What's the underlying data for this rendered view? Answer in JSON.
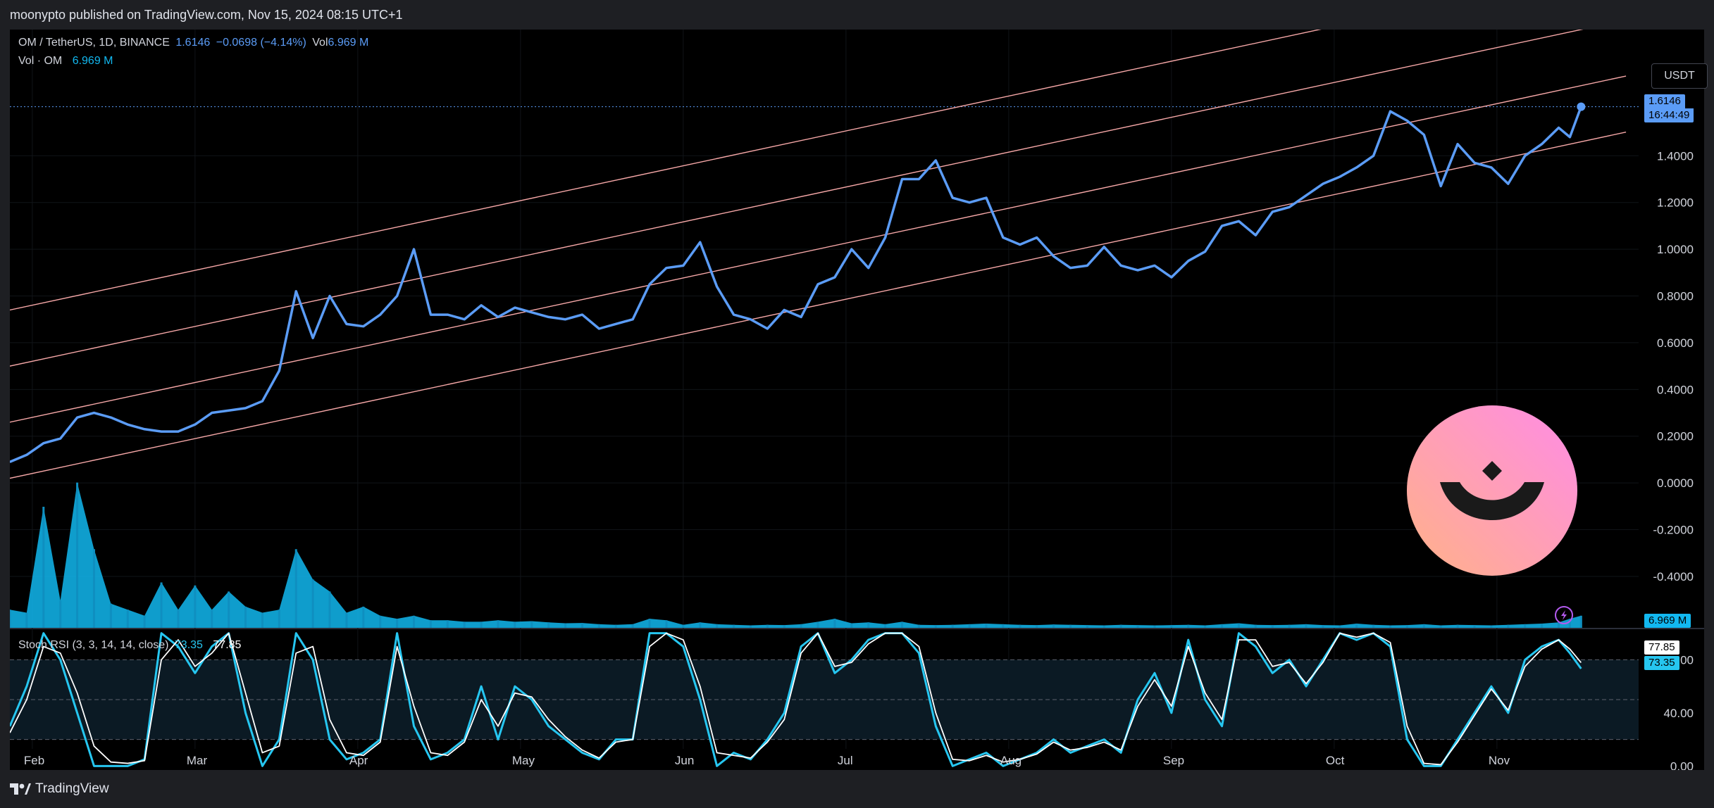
{
  "header": {
    "published": "moonypto published on TradingView.com, Nov 15, 2024 08:15 UTC+1"
  },
  "footer": {
    "brand": "TradingView"
  },
  "currency_button": "USDT",
  "legend": {
    "symbol": "OM / TetherUS, 1D, BINANCE",
    "price": "1.6146",
    "change": "−0.0698 (−4.14%)",
    "vol_label": "Vol",
    "vol_value": "6.969 M",
    "vol_line_label": "Vol · OM",
    "vol_line_value": "6.969 M",
    "stoch_label": "Stoch RSI (3, 3, 14, 14, close)",
    "stoch_k": "73.35",
    "stoch_d": "77.85"
  },
  "tags": {
    "last_price": "1.6146",
    "countdown": "16:44:49",
    "volume": "6.969 M",
    "stoch_d": "77.85",
    "stoch_k": "73.35"
  },
  "colors": {
    "price_line": "#5b9cf6",
    "channel": "#f7a8a8",
    "volume": "#12b8f0",
    "stoch_k": "#26c6f0",
    "stoch_d": "#ffffff",
    "logo_gradient_start": "#ffb287",
    "logo_gradient_end": "#ff8be6"
  },
  "chart_data": [
    {
      "type": "line",
      "title": "OM / TetherUS, 1D, BINANCE",
      "x_ticks": [
        "Feb",
        "Mar",
        "Apr",
        "May",
        "Jun",
        "Jul",
        "Aug",
        "Sep",
        "Oct",
        "Nov"
      ],
      "y_ticks": [
        "1.4000",
        "1.2000",
        "1.0000",
        "0.8000",
        "0.6000",
        "0.4000",
        "0.2000",
        "0.0000",
        "-0.2000",
        "-0.4000"
      ],
      "ylim": [
        -0.62,
        1.94
      ],
      "xlim": [
        0,
        29
      ],
      "grid": true,
      "series": [
        {
          "x": [
            0,
            0.3,
            0.6,
            0.9,
            1.2,
            1.5,
            1.8,
            2.1,
            2.4,
            2.7,
            3.0,
            3.3,
            3.6,
            3.9,
            4.2,
            4.5,
            4.8,
            5.1,
            5.4,
            5.7,
            6.0,
            6.3,
            6.6,
            6.9,
            7.2,
            7.5,
            7.8,
            8.1,
            8.4,
            8.7,
            9.0,
            9.3,
            9.6,
            9.9,
            10.2,
            10.5,
            10.8,
            11.1,
            11.4,
            11.7,
            12.0,
            12.3,
            12.6,
            12.9,
            13.2,
            13.5,
            13.8,
            14.1,
            14.4,
            14.7,
            15.0,
            15.3,
            15.6,
            15.9,
            16.2,
            16.5,
            16.8,
            17.1,
            17.4,
            17.7,
            18.0,
            18.3,
            18.6,
            18.9,
            19.2,
            19.5,
            19.8,
            20.1,
            20.4,
            20.7,
            21.0,
            21.3,
            21.6,
            21.9,
            22.2,
            22.5,
            22.8,
            23.1,
            23.4,
            23.7,
            24.0,
            24.3,
            24.6,
            24.9,
            25.2,
            25.5,
            25.8,
            26.1,
            26.4,
            26.7,
            27.0,
            27.3,
            27.6,
            27.8,
            28.0
          ],
          "y": [
            0.09,
            0.12,
            0.17,
            0.19,
            0.28,
            0.3,
            0.28,
            0.25,
            0.23,
            0.22,
            0.22,
            0.25,
            0.3,
            0.31,
            0.32,
            0.35,
            0.48,
            0.82,
            0.62,
            0.8,
            0.68,
            0.67,
            0.72,
            0.8,
            1.0,
            0.72,
            0.72,
            0.7,
            0.76,
            0.71,
            0.75,
            0.73,
            0.71,
            0.7,
            0.72,
            0.66,
            0.68,
            0.7,
            0.85,
            0.92,
            0.93,
            1.03,
            0.84,
            0.72,
            0.7,
            0.66,
            0.74,
            0.71,
            0.85,
            0.88,
            1.0,
            0.92,
            1.05,
            1.3,
            1.3,
            1.38,
            1.22,
            1.2,
            1.22,
            1.05,
            1.02,
            1.05,
            0.97,
            0.92,
            0.93,
            1.01,
            0.93,
            0.91,
            0.93,
            0.88,
            0.95,
            0.99,
            1.1,
            1.12,
            1.06,
            1.16,
            1.18,
            1.23,
            1.28,
            1.31,
            1.35,
            1.4,
            1.59,
            1.55,
            1.49,
            1.27,
            1.45,
            1.37,
            1.35,
            1.28,
            1.4,
            1.45,
            1.52,
            1.48,
            1.61
          ]
        }
      ],
      "annotations": [
        "Parallel channel (4 lines)"
      ]
    },
    {
      "type": "bar",
      "title": "Vol · OM",
      "series": [
        {
          "name": "Volume (M)",
          "x": [
            0,
            0.3,
            0.6,
            0.9,
            1.2,
            1.5,
            1.8,
            2.1,
            2.4,
            2.7,
            3.0,
            3.3,
            3.6,
            3.9,
            4.2,
            4.5,
            4.8,
            5.1,
            5.4,
            5.7,
            6.0,
            6.3,
            6.6,
            6.9,
            7.2,
            7.5,
            7.8,
            8.1,
            8.4,
            8.7,
            9.0,
            9.3,
            9.6,
            9.9,
            10.2,
            10.5,
            10.8,
            11.1,
            11.4,
            11.7,
            12.0,
            12.3,
            12.6,
            12.9,
            13.2,
            13.5,
            13.8,
            14.1,
            14.4,
            14.7,
            15.0,
            15.3,
            15.6,
            15.9,
            16.2,
            16.5,
            16.8,
            17.1,
            17.4,
            17.7,
            18.0,
            18.3,
            18.6,
            18.9,
            19.2,
            19.5,
            19.8,
            20.1,
            20.4,
            20.7,
            21.0,
            21.3,
            21.6,
            21.9,
            22.2,
            22.5,
            22.8,
            23.1,
            23.4,
            23.7,
            24.0,
            24.3,
            24.6,
            24.9,
            25.2,
            25.5,
            25.8,
            26.1,
            26.4,
            26.7,
            27.0,
            27.3,
            27.6,
            27.8,
            28.0
          ],
          "values": [
            60,
            50,
            400,
            90,
            480,
            260,
            80,
            60,
            40,
            150,
            60,
            140,
            60,
            120,
            70,
            50,
            60,
            260,
            160,
            120,
            50,
            70,
            40,
            30,
            40,
            25,
            25,
            20,
            20,
            25,
            20,
            22,
            18,
            15,
            16,
            12,
            10,
            12,
            30,
            25,
            10,
            18,
            12,
            10,
            8,
            10,
            9,
            12,
            20,
            30,
            15,
            18,
            12,
            20,
            10,
            9,
            10,
            12,
            14,
            12,
            10,
            9,
            11,
            10,
            9,
            8,
            10,
            9,
            8,
            9,
            10,
            8,
            12,
            15,
            10,
            9,
            10,
            12,
            9,
            8,
            14,
            10,
            8,
            9,
            12,
            8,
            10,
            9,
            8,
            10,
            12,
            14,
            18,
            30,
            40
          ]
        }
      ]
    },
    {
      "type": "line",
      "title": "Stoch RSI (3, 3, 14, 14, close)",
      "y_ticks": [
        "80.00",
        "40.00",
        "0.00"
      ],
      "ylim": [
        -3,
        103
      ],
      "series": [
        {
          "name": "K",
          "x": [
            0,
            0.3,
            0.6,
            0.9,
            1.2,
            1.5,
            1.8,
            2.1,
            2.4,
            2.7,
            3.0,
            3.3,
            3.6,
            3.9,
            4.2,
            4.5,
            4.8,
            5.1,
            5.4,
            5.7,
            6.0,
            6.3,
            6.6,
            6.9,
            7.2,
            7.5,
            7.8,
            8.1,
            8.4,
            8.7,
            9.0,
            9.3,
            9.6,
            9.9,
            10.2,
            10.5,
            10.8,
            11.1,
            11.4,
            11.7,
            12.0,
            12.3,
            12.6,
            12.9,
            13.2,
            13.5,
            13.8,
            14.1,
            14.4,
            14.7,
            15.0,
            15.3,
            15.6,
            15.9,
            16.2,
            16.5,
            16.8,
            17.1,
            17.4,
            17.7,
            18.0,
            18.3,
            18.6,
            18.9,
            19.2,
            19.5,
            19.8,
            20.1,
            20.4,
            20.7,
            21.0,
            21.3,
            21.6,
            21.9,
            22.2,
            22.5,
            22.8,
            23.1,
            23.4,
            23.7,
            24.0,
            24.3,
            24.6,
            24.9,
            25.2,
            25.5,
            25.8,
            26.1,
            26.4,
            26.7,
            27.0,
            27.3,
            27.6,
            27.8,
            28.0
          ],
          "values": [
            30,
            60,
            100,
            80,
            40,
            0,
            0,
            0,
            5,
            100,
            90,
            70,
            90,
            100,
            40,
            0,
            20,
            100,
            80,
            20,
            5,
            10,
            20,
            100,
            30,
            5,
            10,
            20,
            60,
            20,
            60,
            50,
            30,
            20,
            10,
            5,
            20,
            20,
            100,
            100,
            90,
            50,
            0,
            10,
            5,
            20,
            40,
            90,
            100,
            70,
            80,
            95,
            100,
            100,
            85,
            30,
            0,
            5,
            10,
            0,
            5,
            10,
            20,
            10,
            15,
            20,
            10,
            50,
            70,
            40,
            95,
            50,
            30,
            100,
            90,
            70,
            80,
            60,
            80,
            100,
            95,
            100,
            90,
            20,
            0,
            0,
            20,
            40,
            60,
            40,
            80,
            90,
            95,
            85,
            73.35
          ]
        },
        {
          "name": "D",
          "x": [
            0,
            0.3,
            0.6,
            0.9,
            1.2,
            1.5,
            1.8,
            2.1,
            2.4,
            2.7,
            3.0,
            3.3,
            3.6,
            3.9,
            4.2,
            4.5,
            4.8,
            5.1,
            5.4,
            5.7,
            6.0,
            6.3,
            6.6,
            6.9,
            7.2,
            7.5,
            7.8,
            8.1,
            8.4,
            8.7,
            9.0,
            9.3,
            9.6,
            9.9,
            10.2,
            10.5,
            10.8,
            11.1,
            11.4,
            11.7,
            12.0,
            12.3,
            12.6,
            12.9,
            13.2,
            13.5,
            13.8,
            14.1,
            14.4,
            14.7,
            15.0,
            15.3,
            15.6,
            15.9,
            16.2,
            16.5,
            16.8,
            17.1,
            17.4,
            17.7,
            18.0,
            18.3,
            18.6,
            18.9,
            19.2,
            19.5,
            19.8,
            20.1,
            20.4,
            20.7,
            21.0,
            21.3,
            21.6,
            21.9,
            22.2,
            22.5,
            22.8,
            23.1,
            23.4,
            23.7,
            24.0,
            24.3,
            24.6,
            24.9,
            25.2,
            25.5,
            25.8,
            26.1,
            26.4,
            26.7,
            27.0,
            27.3,
            27.6,
            27.8,
            28.0
          ],
          "values": [
            25,
            50,
            90,
            85,
            55,
            15,
            3,
            2,
            4,
            80,
            95,
            75,
            85,
            100,
            55,
            10,
            15,
            85,
            90,
            35,
            10,
            8,
            18,
            90,
            45,
            10,
            8,
            18,
            50,
            30,
            55,
            52,
            35,
            22,
            12,
            6,
            18,
            20,
            90,
            100,
            95,
            60,
            10,
            8,
            6,
            18,
            35,
            85,
            100,
            75,
            78,
            92,
            100,
            100,
            90,
            40,
            5,
            4,
            8,
            3,
            5,
            9,
            18,
            12,
            14,
            18,
            12,
            45,
            65,
            45,
            90,
            55,
            35,
            95,
            95,
            75,
            78,
            62,
            78,
            100,
            97,
            100,
            93,
            30,
            2,
            1,
            18,
            38,
            58,
            42,
            75,
            88,
            95,
            88,
            77.85
          ]
        }
      ]
    }
  ]
}
